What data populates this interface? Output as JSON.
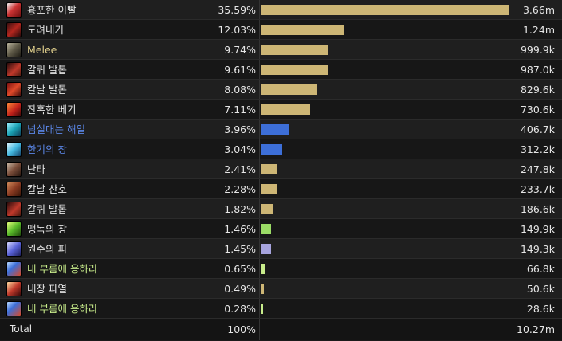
{
  "colors": {
    "tan": "#cdb675",
    "blue": "#3d6fd8",
    "green": "#9bdc66",
    "lavender": "#a7a4de",
    "pale_green": "#c8ec8b",
    "name_white": "#e6e6e6",
    "name_tan": "#e0cf8c",
    "name_blue": "#5b87e8",
    "name_green": "#c8ec8b"
  },
  "rows": [
    {
      "name": "흉포한 이빨",
      "pct": "35.59%",
      "fraction": 0.3559,
      "amount": "3.66m",
      "icon": "fang-icon",
      "bar_color": "#cdb675",
      "name_color": "#e6e6e6"
    },
    {
      "name": "도려내기",
      "pct": "12.03%",
      "fraction": 0.1203,
      "amount": "1.24m",
      "icon": "rip-claw-icon",
      "bar_color": "#cdb675",
      "name_color": "#e6e6e6"
    },
    {
      "name": "Melee",
      "pct": "9.74%",
      "fraction": 0.0974,
      "amount": "999.9k",
      "icon": "melee-icon",
      "bar_color": "#cdb675",
      "name_color": "#e0cf8c"
    },
    {
      "name": "갈퀴 발톱",
      "pct": "9.61%",
      "fraction": 0.0961,
      "amount": "987.0k",
      "icon": "rake-claw-icon",
      "bar_color": "#cdb675",
      "name_color": "#e6e6e6"
    },
    {
      "name": "칼날 발톱",
      "pct": "8.08%",
      "fraction": 0.0808,
      "amount": "829.6k",
      "icon": "blade-claw-icon",
      "bar_color": "#cdb675",
      "name_color": "#e6e6e6"
    },
    {
      "name": "잔혹한 베기",
      "pct": "7.11%",
      "fraction": 0.0711,
      "amount": "730.6k",
      "icon": "brutal-slash-icon",
      "bar_color": "#cdb675",
      "name_color": "#e6e6e6"
    },
    {
      "name": "넘실대는 해일",
      "pct": "3.96%",
      "fraction": 0.0396,
      "amount": "406.7k",
      "icon": "surging-tide-icon",
      "bar_color": "#3d6fd8",
      "name_color": "#5b87e8"
    },
    {
      "name": "한기의 창",
      "pct": "3.04%",
      "fraction": 0.0304,
      "amount": "312.2k",
      "icon": "frost-spear-icon",
      "bar_color": "#3d6fd8",
      "name_color": "#5b87e8"
    },
    {
      "name": "난타",
      "pct": "2.41%",
      "fraction": 0.0241,
      "amount": "247.8k",
      "icon": "thrash-icon",
      "bar_color": "#cdb675",
      "name_color": "#e6e6e6"
    },
    {
      "name": "칼날 산호",
      "pct": "2.28%",
      "fraction": 0.0228,
      "amount": "233.7k",
      "icon": "blade-coral-icon",
      "bar_color": "#cdb675",
      "name_color": "#e6e6e6"
    },
    {
      "name": "갈퀴 발톱",
      "pct": "1.82%",
      "fraction": 0.0182,
      "amount": "186.6k",
      "icon": "rake-claw-icon",
      "bar_color": "#cdb675",
      "name_color": "#e6e6e6"
    },
    {
      "name": "맹독의 창",
      "pct": "1.46%",
      "fraction": 0.0146,
      "amount": "149.9k",
      "icon": "venom-spear-icon",
      "bar_color": "#9bdc66",
      "name_color": "#e6e6e6"
    },
    {
      "name": "원수의 피",
      "pct": "1.45%",
      "fraction": 0.0145,
      "amount": "149.3k",
      "icon": "nemesis-blood-icon",
      "bar_color": "#a7a4de",
      "name_color": "#e6e6e6"
    },
    {
      "name": "내 부름에 응하라",
      "pct": "0.65%",
      "fraction": 0.0065,
      "amount": "66.8k",
      "icon": "heed-my-call-icon",
      "bar_color": "#c8ec8b",
      "name_color": "#c8ec8b"
    },
    {
      "name": "내장 파열",
      "pct": "0.49%",
      "fraction": 0.0049,
      "amount": "50.6k",
      "icon": "rupture-icon",
      "bar_color": "#cdb675",
      "name_color": "#e6e6e6"
    },
    {
      "name": "내 부름에 응하라",
      "pct": "0.28%",
      "fraction": 0.0028,
      "amount": "28.6k",
      "icon": "heed-my-call-icon",
      "bar_color": "#c8ec8b",
      "name_color": "#c8ec8b"
    }
  ],
  "total": {
    "label": "Total",
    "pct": "100%",
    "amount": "10.27m"
  }
}
